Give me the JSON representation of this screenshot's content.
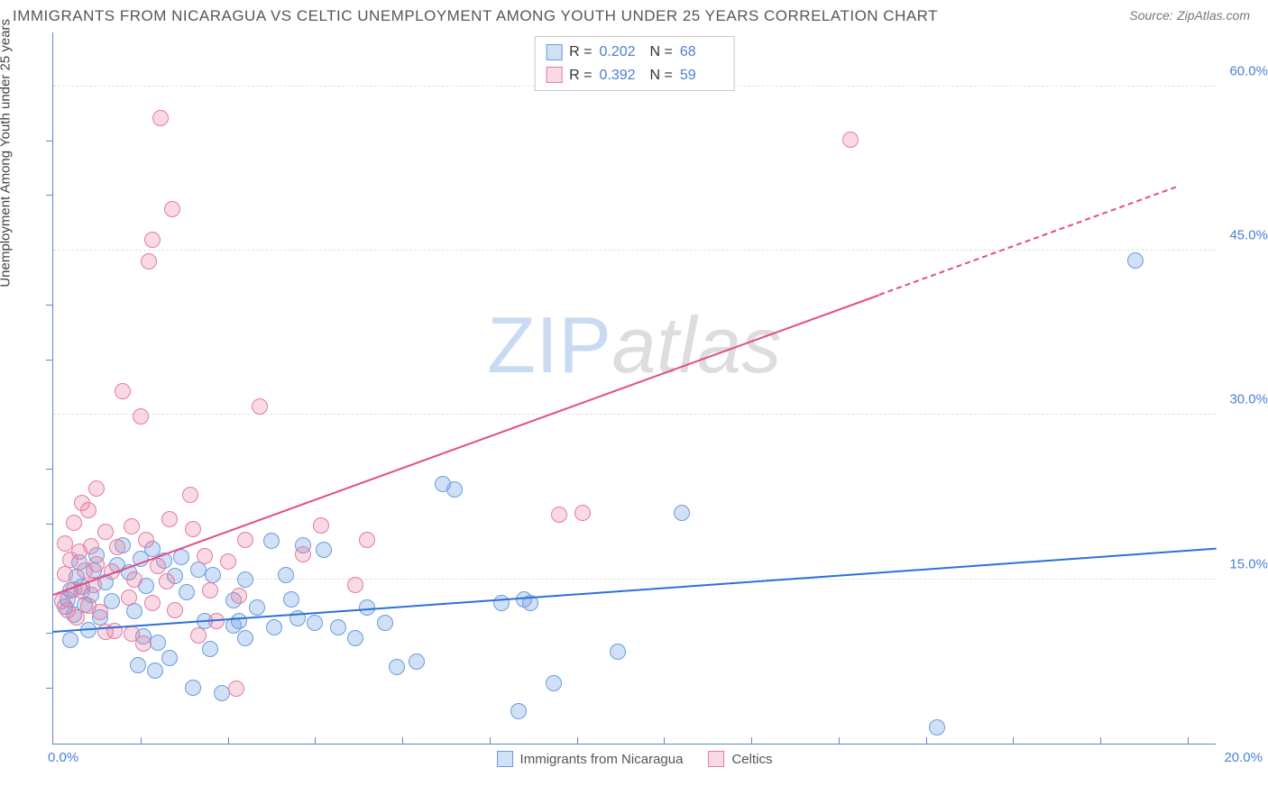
{
  "title": "IMMIGRANTS FROM NICARAGUA VS CELTIC UNEMPLOYMENT AMONG YOUTH UNDER 25 YEARS CORRELATION CHART",
  "source_prefix": "Source:",
  "source": "ZipAtlas.com",
  "watermark_a": "ZIP",
  "watermark_b": "atlas",
  "chart": {
    "type": "scatter",
    "x_label": null,
    "y_label": "Unemployment Among Youth under 25 years",
    "background_color": "#ffffff",
    "grid_color": "#e0e0e0",
    "axis_color": "#5b87d6",
    "tick_label_color": "#4a7fd8",
    "xlim": [
      0,
      20
    ],
    "ylim": [
      0,
      65
    ],
    "x_origin_label": "0.0%",
    "x_end_label": "20.0%",
    "x_tick_positions": [
      1.5,
      3.0,
      4.5,
      6.0,
      7.5,
      9.0,
      10.5,
      12.0,
      13.5,
      15.0,
      16.5,
      18.0,
      19.5
    ],
    "y_tick_minor": [
      5,
      10,
      20,
      25,
      35,
      40,
      50,
      55
    ],
    "y_ticks": [
      {
        "v": 15,
        "label": "15.0%"
      },
      {
        "v": 30,
        "label": "30.0%"
      },
      {
        "v": 45,
        "label": "45.0%"
      },
      {
        "v": 60,
        "label": "60.0%"
      }
    ],
    "title_fontsize": 17,
    "label_fontsize": 15,
    "tick_fontsize": 15,
    "marker_radius": 9,
    "marker_border_width": 1,
    "series": [
      {
        "id": "nicaragua",
        "name": "Immigrants from Nicaragua",
        "fill": "rgba(120,165,225,0.35)",
        "stroke": "#6a9be0",
        "line_color": "#2d6fd9",
        "R": "0.202",
        "N": "68",
        "trend": {
          "x1": 0,
          "y1": 10.1,
          "x2": 20,
          "y2": 17.7,
          "dashed_after_x": null
        },
        "points": [
          [
            0.2,
            12.5
          ],
          [
            0.25,
            13.2
          ],
          [
            0.3,
            14.0
          ],
          [
            0.3,
            9.5
          ],
          [
            0.35,
            11.8
          ],
          [
            0.4,
            15.2
          ],
          [
            0.45,
            16.5
          ],
          [
            0.5,
            14.3
          ],
          [
            0.55,
            12.7
          ],
          [
            0.6,
            10.4
          ],
          [
            0.65,
            13.6
          ],
          [
            0.7,
            15.8
          ],
          [
            0.75,
            17.2
          ],
          [
            0.8,
            11.5
          ],
          [
            0.9,
            14.7
          ],
          [
            1.0,
            13.0
          ],
          [
            1.1,
            16.3
          ],
          [
            1.2,
            18.1
          ],
          [
            1.3,
            15.6
          ],
          [
            1.4,
            12.1
          ],
          [
            1.45,
            7.2
          ],
          [
            1.5,
            16.9
          ],
          [
            1.55,
            9.8
          ],
          [
            1.6,
            14.4
          ],
          [
            1.7,
            17.8
          ],
          [
            1.75,
            6.7
          ],
          [
            1.8,
            9.2
          ],
          [
            1.9,
            16.7
          ],
          [
            2.0,
            7.8
          ],
          [
            2.1,
            15.3
          ],
          [
            2.2,
            17.0
          ],
          [
            2.3,
            13.8
          ],
          [
            2.4,
            5.1
          ],
          [
            2.5,
            15.9
          ],
          [
            2.6,
            11.2
          ],
          [
            2.7,
            8.6
          ],
          [
            2.75,
            15.4
          ],
          [
            2.9,
            4.6
          ],
          [
            3.1,
            10.8
          ],
          [
            3.1,
            13.1
          ],
          [
            3.2,
            11.2
          ],
          [
            3.3,
            9.6
          ],
          [
            3.3,
            15.0
          ],
          [
            3.5,
            12.4
          ],
          [
            3.75,
            18.5
          ],
          [
            3.8,
            10.6
          ],
          [
            4.0,
            15.4
          ],
          [
            4.1,
            13.2
          ],
          [
            4.2,
            11.4
          ],
          [
            4.3,
            18.1
          ],
          [
            4.5,
            11.0
          ],
          [
            4.65,
            17.7
          ],
          [
            4.9,
            10.6
          ],
          [
            5.2,
            9.6
          ],
          [
            5.4,
            12.4
          ],
          [
            5.7,
            11.0
          ],
          [
            5.9,
            7.0
          ],
          [
            6.25,
            7.5
          ],
          [
            6.7,
            23.7
          ],
          [
            6.9,
            23.2
          ],
          [
            7.7,
            12.8
          ],
          [
            8.0,
            3.0
          ],
          [
            8.1,
            13.2
          ],
          [
            8.2,
            12.8
          ],
          [
            8.6,
            5.5
          ],
          [
            9.7,
            8.4
          ],
          [
            10.8,
            21.1
          ],
          [
            15.2,
            1.5
          ],
          [
            18.6,
            44.1
          ]
        ]
      },
      {
        "id": "celtics",
        "name": "Celtics",
        "fill": "rgba(235,130,165,0.3)",
        "stroke": "#e57ba1",
        "line_color": "#e34d84",
        "R": "0.392",
        "N": "59",
        "trend": {
          "x1": 0,
          "y1": 13.5,
          "x2": 19.3,
          "y2": 50.7,
          "dashed_after_x": 14.2
        },
        "points": [
          [
            0.15,
            13.0
          ],
          [
            0.2,
            15.5
          ],
          [
            0.2,
            18.3
          ],
          [
            0.25,
            12.2
          ],
          [
            0.3,
            16.8
          ],
          [
            0.35,
            14.1
          ],
          [
            0.35,
            20.2
          ],
          [
            0.4,
            11.5
          ],
          [
            0.45,
            17.5
          ],
          [
            0.5,
            13.9
          ],
          [
            0.5,
            22.0
          ],
          [
            0.55,
            15.8
          ],
          [
            0.6,
            12.6
          ],
          [
            0.6,
            21.3
          ],
          [
            0.65,
            18.0
          ],
          [
            0.7,
            14.5
          ],
          [
            0.75,
            16.4
          ],
          [
            0.75,
            23.3
          ],
          [
            0.8,
            12.0
          ],
          [
            0.9,
            19.3
          ],
          [
            0.9,
            10.2
          ],
          [
            1.0,
            15.7
          ],
          [
            1.05,
            10.3
          ],
          [
            1.1,
            17.9
          ],
          [
            1.2,
            32.2
          ],
          [
            1.3,
            13.3
          ],
          [
            1.35,
            19.8
          ],
          [
            1.35,
            10.0
          ],
          [
            1.4,
            15.0
          ],
          [
            1.5,
            29.9
          ],
          [
            1.55,
            9.1
          ],
          [
            1.6,
            18.6
          ],
          [
            1.65,
            44.0
          ],
          [
            1.7,
            12.8
          ],
          [
            1.7,
            46.0
          ],
          [
            1.8,
            16.2
          ],
          [
            1.85,
            57.1
          ],
          [
            1.95,
            14.8
          ],
          [
            2.0,
            20.5
          ],
          [
            2.05,
            48.8
          ],
          [
            2.1,
            12.2
          ],
          [
            2.35,
            22.7
          ],
          [
            2.4,
            19.6
          ],
          [
            2.5,
            9.9
          ],
          [
            2.6,
            17.1
          ],
          [
            2.7,
            14.0
          ],
          [
            2.8,
            11.2
          ],
          [
            3.0,
            16.6
          ],
          [
            3.15,
            5.0
          ],
          [
            3.2,
            13.5
          ],
          [
            3.3,
            18.6
          ],
          [
            3.55,
            30.8
          ],
          [
            4.3,
            17.3
          ],
          [
            4.6,
            19.9
          ],
          [
            5.2,
            14.5
          ],
          [
            5.4,
            18.6
          ],
          [
            8.7,
            20.9
          ],
          [
            9.1,
            21.1
          ],
          [
            13.7,
            55.1
          ]
        ]
      }
    ],
    "legend_top": {
      "r_label": "R =",
      "n_label": "N ="
    },
    "legend_bottom": true
  }
}
